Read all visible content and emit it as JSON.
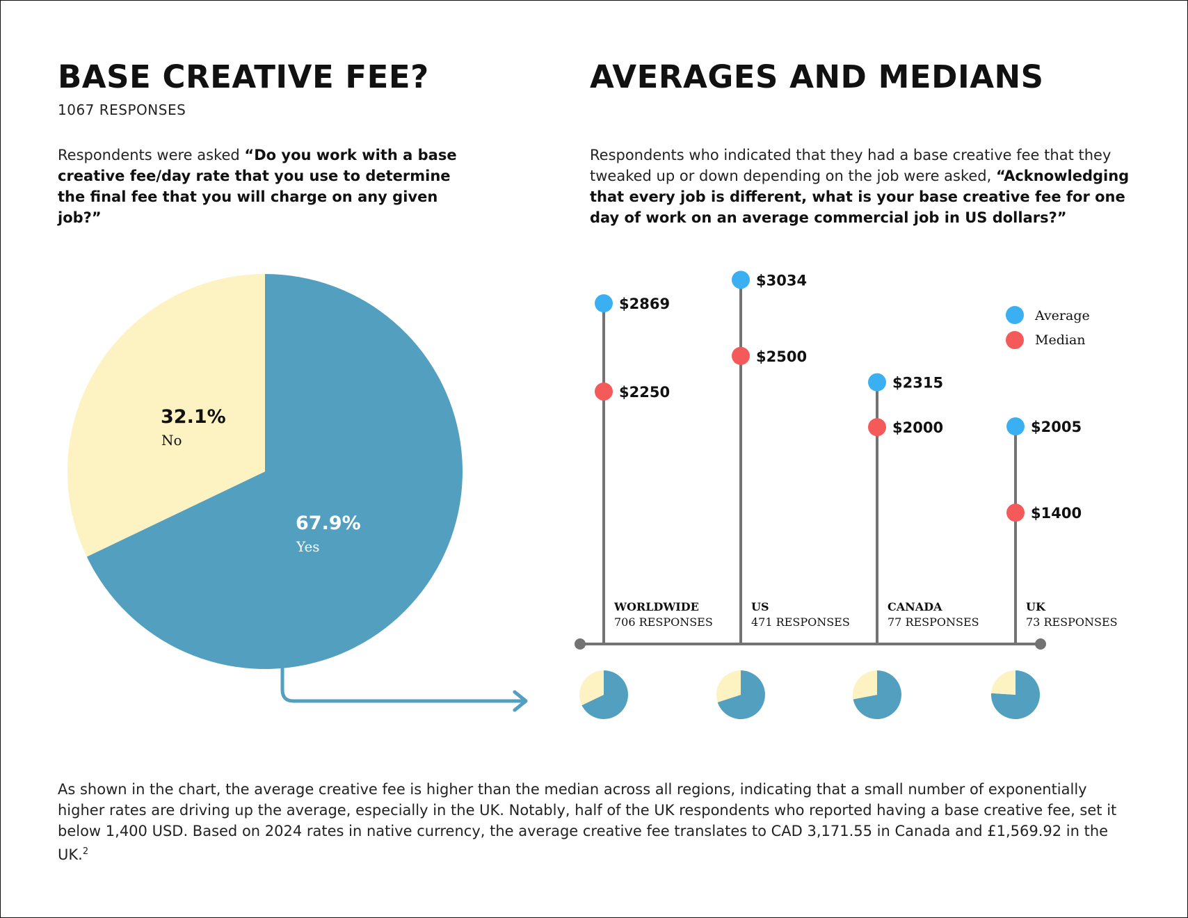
{
  "left": {
    "title": "BASE CREATIVE FEE?",
    "responses": "1067 RESPONSES",
    "intro": "Respondents were asked ",
    "question": "“Do you work with a base creative fee/day rate that you use to determine the final fee that you will charge on any given job?”"
  },
  "right": {
    "title": "AVERAGES AND MEDIANS",
    "intro": "Respondents who indicated that they had a base creative fee that they tweaked up or down depending on the job were asked, ",
    "question": "“Acknowledging that every job is different, what is your base creative fee for one day of work on an average commercial job in US dollars?”"
  },
  "footnote": {
    "text": "As shown in the chart, the average creative fee is higher than the median across all regions, indicating that a small number of exponentially higher rates are driving up the average, especially in the UK. Notably, half of the UK respondents who reported having a base creative fee, set it below 1,400 USD. Based on 2024 rates in native currency, the average creative fee translates to CAD 3,171.55 in Canada and £1,569.92 in the UK.",
    "sup": "2"
  },
  "colors": {
    "yes": "#529fbf",
    "no": "#fdf2c2",
    "average": "#3ab0f2",
    "median": "#f55a5a",
    "stem": "#737373"
  },
  "chart_data": [
    {
      "type": "pie",
      "title": "BASE CREATIVE FEE?",
      "slices": [
        {
          "label": "Yes",
          "value": 67.9,
          "display": "67.9%"
        },
        {
          "label": "No",
          "value": 32.1,
          "display": "32.1%"
        }
      ]
    },
    {
      "type": "dot-stem",
      "title": "AVERAGES AND MEDIANS",
      "legend": [
        "Average",
        "Median"
      ],
      "regions": [
        {
          "name": "WORLDWIDE",
          "responses": "706 RESPONSES",
          "average": 2869,
          "median": 2250,
          "average_label": "$2869",
          "median_label": "$2250",
          "yes_share": 67.9
        },
        {
          "name": "US",
          "responses": "471 RESPONSES",
          "average": 3034,
          "median": 2500,
          "average_label": "$3034",
          "median_label": "$2500",
          "yes_share": 70
        },
        {
          "name": "CANADA",
          "responses": "77 RESPONSES",
          "average": 2315,
          "median": 2000,
          "average_label": "$2315",
          "median_label": "$2000",
          "yes_share": 72
        },
        {
          "name": "UK",
          "responses": "73 RESPONSES",
          "average": 2005,
          "median": 1400,
          "average_label": "$2005",
          "median_label": "$1400",
          "yes_share": 76
        }
      ]
    }
  ]
}
